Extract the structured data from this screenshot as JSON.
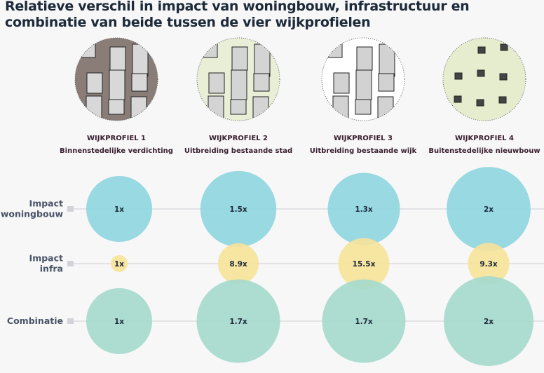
{
  "title": "Relatieve verschil in impact van woningbouw, infrastructuur en combinatie van beide tussen de vier wijkprofielen",
  "colors": {
    "woningbouw": "#8fd6e0",
    "infra": "#f6e39a",
    "combinatie": "#a6dacd",
    "text": "#1d2a3a",
    "label": "#4a5468"
  },
  "profiles": [
    {
      "title": "WIJKPROFIEL 1",
      "subtitle": "Binnenstedelijke verdichting"
    },
    {
      "title": "WIJKPROFIEL 2",
      "subtitle": "Uitbreiding bestaande stad"
    },
    {
      "title": "WIJKPROFIEL 3",
      "subtitle": "Uitbreiding bestaande wijk"
    },
    {
      "title": "WIJKPROFIEL 4",
      "subtitle": "Buitenstedelijke nieuwbouw"
    }
  ],
  "chart_data": {
    "type": "bubble",
    "title": "Relatieve verschil in impact van woningbouw, infrastructuur en combinatie van beide tussen de vier wijkprofielen",
    "categories": [
      "WIJKPROFIEL 1",
      "WIJKPROFIEL 2",
      "WIJKPROFIEL 3",
      "WIJKPROFIEL 4"
    ],
    "series": [
      {
        "name": "Impact woningbouw",
        "label_lines": [
          "Impact",
          "woningbouw"
        ],
        "color": "#8fd6e0",
        "values": [
          1,
          1.5,
          1.3,
          2
        ],
        "labels": [
          "1x",
          "1.5x",
          "1.3x",
          "2x"
        ]
      },
      {
        "name": "Impact infra",
        "label_lines": [
          "Impact",
          "infra"
        ],
        "color": "#f6e39a",
        "values": [
          1,
          8.9,
          15.5,
          9.3
        ],
        "labels": [
          "1x",
          "8.9x",
          "15.5x",
          "9.3x"
        ]
      },
      {
        "name": "Combinatie",
        "label_lines": [
          "Combinatie"
        ],
        "color": "#a6dacd",
        "values": [
          1,
          1.7,
          1.7,
          2
        ],
        "labels": [
          "1x",
          "1.7x",
          "1.7x",
          "2x"
        ]
      }
    ]
  }
}
